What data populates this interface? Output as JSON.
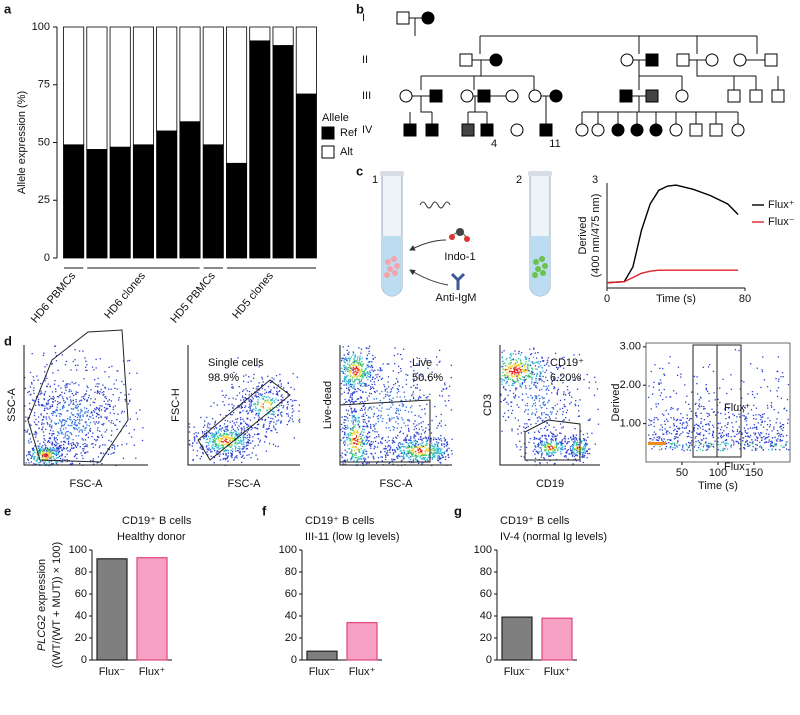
{
  "panel_labels": [
    "a",
    "b",
    "c",
    "d",
    "e",
    "f",
    "g"
  ],
  "chart_data": [
    {
      "type": "stacked_bar",
      "y_label": "Allele expression (%)",
      "categories": [
        null,
        null,
        null,
        null,
        null,
        null,
        null,
        null,
        null,
        null,
        null
      ],
      "groups": [
        "HD6 PBMCs",
        "HD6 clones",
        "HD5 PBMCs",
        "HD5 clones"
      ],
      "legend_title": "Allele",
      "series": [
        {
          "name": "Ref",
          "color": "#000000",
          "values": [
            49,
            47,
            48,
            49,
            55,
            59,
            49,
            41,
            94,
            92,
            71
          ]
        },
        {
          "name": "Alt",
          "color": "#ffffff",
          "values": [
            51,
            53,
            52,
            51,
            45,
            41,
            51,
            59,
            6,
            8,
            29
          ]
        }
      ],
      "ylim": [
        0,
        100
      ],
      "yticks": [
        0,
        25,
        50,
        75,
        100
      ]
    },
    {
      "type": "line",
      "x_label": "Time (s)",
      "y_label": [
        "Derived",
        "(400 nm/475 nm)"
      ],
      "xlim": [
        0,
        80
      ],
      "xticks": [
        0,
        80
      ],
      "ylim": [
        0,
        1
      ],
      "series": [
        {
          "name": "Flux⁺",
          "color": "#000000",
          "x": [
            0,
            10,
            15,
            20,
            25,
            30,
            35,
            40,
            50,
            60,
            70,
            76
          ],
          "values": [
            0.05,
            0.06,
            0.2,
            0.55,
            0.8,
            0.93,
            0.97,
            0.98,
            0.94,
            0.88,
            0.8,
            0.7
          ]
        },
        {
          "name": "Flux⁻",
          "color": "#e0202a",
          "x": [
            0,
            10,
            15,
            20,
            25,
            30,
            35,
            40,
            50,
            60,
            70,
            76
          ],
          "values": [
            0.05,
            0.06,
            0.1,
            0.14,
            0.16,
            0.17,
            0.17,
            0.17,
            0.17,
            0.17,
            0.17,
            0.17
          ]
        }
      ]
    },
    {
      "type": "density",
      "x_label": "Time (s)",
      "y_label": "Derived",
      "xlim": [
        0,
        200
      ],
      "xticks": [
        50,
        100,
        150
      ],
      "ylim": [
        0,
        3.1
      ],
      "yticks": [
        {
          "value": 1,
          "label": "1.00"
        },
        {
          "value": 2,
          "label": "2.00"
        },
        {
          "value": 3,
          "label": "3.00"
        }
      ],
      "annotations": [
        "Flux⁺",
        "Flux⁻"
      ]
    },
    {
      "type": "bar",
      "title": "CD19⁺ B cells",
      "subtitle": "Healthy donor",
      "y_label": {
        "gene": "PLCG2",
        "text": " expression",
        "formula": "((WT/(WT + MUT)) × 100)"
      },
      "categories": [
        "Flux⁻",
        "Flux⁺"
      ],
      "values": [
        92,
        93
      ],
      "colors": [
        "#7f7f7f",
        "#f7a1c4"
      ],
      "ylim": [
        0,
        100
      ],
      "yticks": [
        0,
        20,
        40,
        60,
        80,
        100
      ]
    },
    {
      "type": "bar",
      "title": "CD19⁺ B cells",
      "subtitle": "III-11 (low Ig levels)",
      "categories": [
        "Flux⁻",
        "Flux⁺"
      ],
      "values": [
        8,
        34
      ],
      "colors": [
        "#7f7f7f",
        "#f7a1c4"
      ],
      "ylim": [
        0,
        100
      ],
      "yticks": [
        0,
        20,
        40,
        60,
        80,
        100
      ]
    },
    {
      "type": "bar",
      "title": "CD19⁺ B cells",
      "subtitle": "IV-4 (normal Ig levels)",
      "categories": [
        "Flux⁻",
        "Flux⁺"
      ],
      "values": [
        39,
        38
      ],
      "colors": [
        "#7f7f7f",
        "#f7a1c4"
      ],
      "ylim": [
        0,
        100
      ],
      "yticks": [
        0,
        20,
        40,
        60,
        80,
        100
      ]
    }
  ],
  "pedigree": {
    "generations": [
      "I",
      "II",
      "III",
      "IV"
    ],
    "numbers": [
      "4",
      "11"
    ]
  },
  "assay": {
    "steps": [
      "1",
      "2",
      "3"
    ],
    "reagents": [
      "Indo-1",
      "Anti-IgM"
    ]
  },
  "flow": [
    {
      "x_label": "FSC-A",
      "y_label": "SSC-A"
    },
    {
      "x_label": "FSC-A",
      "y_label": "FSC-H",
      "gate": "Single cells",
      "percent": "98.9%"
    },
    {
      "x_label": "FSC-A",
      "y_label": "Live-dead",
      "gate": "Live",
      "percent": "50.6%"
    },
    {
      "x_label": "CD19",
      "y_label": "CD3",
      "gate": "CD19⁺",
      "percent": "6.20%"
    }
  ]
}
